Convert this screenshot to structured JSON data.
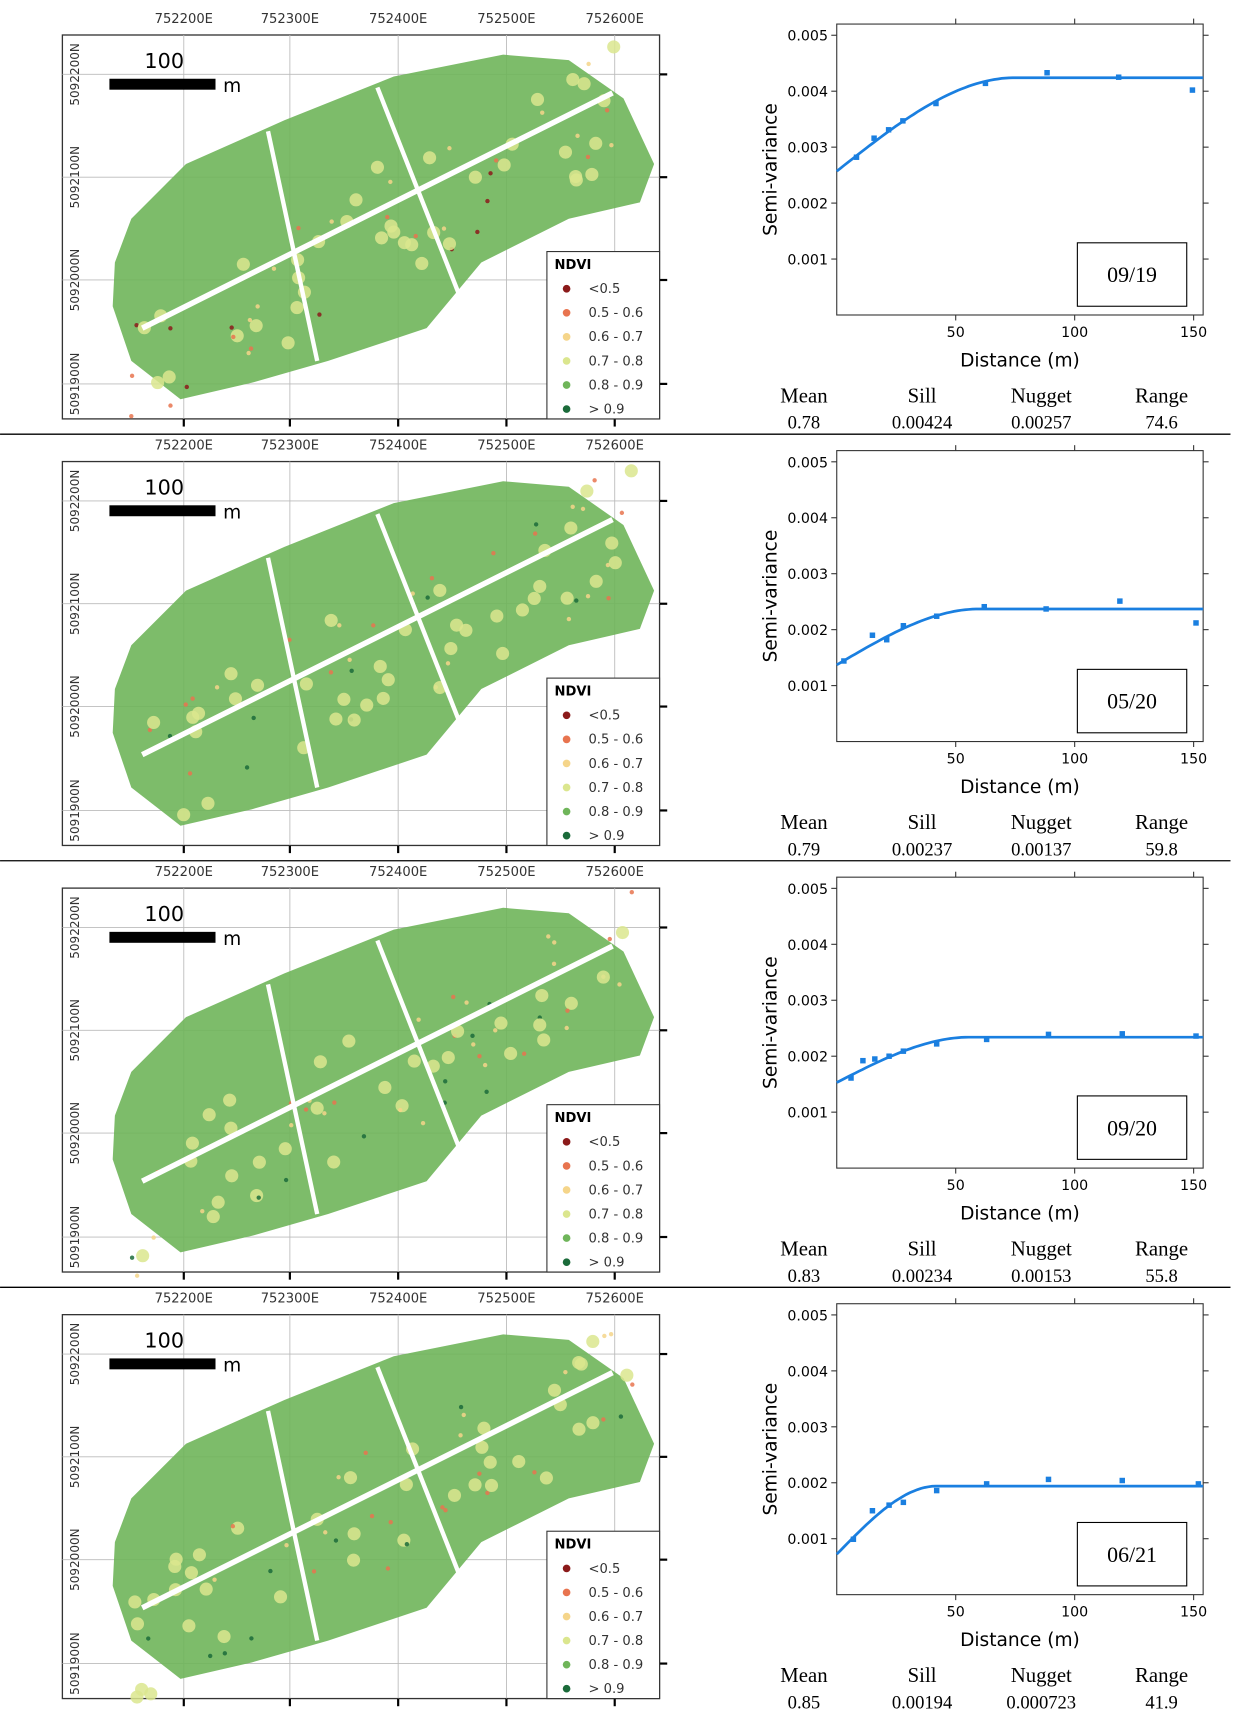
{
  "map": {
    "xticks": [
      "752200E",
      "752300E",
      "752400E",
      "752500E",
      "752600E"
    ],
    "yticks": [
      "5092200N",
      "5092100N",
      "5092000N",
      "5091900N"
    ],
    "scale_label": "100",
    "scale_unit": "m",
    "legend_title": "NDVI",
    "legend": [
      {
        "label": "<0.5",
        "color": "#8b1a1a"
      },
      {
        "label": "0.5 - 0.6",
        "color": "#e8744f"
      },
      {
        "label": "0.6 - 0.7",
        "color": "#f5d58a"
      },
      {
        "label": "0.7 - 0.8",
        "color": "#dbe68e"
      },
      {
        "label": "0.8 - 0.9",
        "color": "#6fb55a"
      },
      {
        "label": "> 0.9",
        "color": "#1b6b3a"
      }
    ]
  },
  "chart_data": [
    {
      "type": "scatter",
      "title": "09/19",
      "x_label": "Distance (m)",
      "y_label": "Semi-variance",
      "color": "#1a7fe0",
      "xlim": [
        0,
        154
      ],
      "ylim": [
        0,
        0.0052
      ],
      "xticks": [
        50,
        100,
        150
      ],
      "yticks": [
        0.001,
        0.002,
        0.003,
        0.004,
        0.005
      ],
      "x": [
        8.3,
        15.7,
        21.8,
        27.8,
        41.7,
        62.5,
        88.4,
        118.5,
        149.5
      ],
      "values": [
        0.00282,
        0.00316,
        0.00331,
        0.00347,
        0.00378,
        0.00414,
        0.00433,
        0.00425,
        0.00402
      ],
      "stats": {
        "labels": [
          "Mean",
          "Sill",
          "Nugget",
          "Range"
        ],
        "values": [
          0.78,
          0.00424,
          0.00257,
          74.6
        ]
      }
    },
    {
      "type": "scatter",
      "title": "05/20",
      "x_label": "Distance (m)",
      "y_label": "Semi-variance",
      "color": "#1a7fe0",
      "xlim": [
        0,
        154
      ],
      "ylim": [
        0,
        0.0052
      ],
      "xticks": [
        50,
        100,
        150
      ],
      "yticks": [
        0.001,
        0.002,
        0.003,
        0.004,
        0.005
      ],
      "x": [
        3,
        15,
        21,
        28,
        42,
        62,
        88,
        119,
        151
      ],
      "values": [
        0.00144,
        0.0019,
        0.00182,
        0.00207,
        0.00224,
        0.00241,
        0.00237,
        0.00251,
        0.00212
      ],
      "stats": {
        "labels": [
          "Mean",
          "Sill",
          "Nugget",
          "Range"
        ],
        "values": [
          0.79,
          0.00237,
          0.00137,
          59.8
        ]
      }
    },
    {
      "type": "scatter",
      "title": "09/20",
      "x_label": "Distance (m)",
      "y_label": "Semi-variance",
      "color": "#1a7fe0",
      "xlim": [
        0,
        154
      ],
      "ylim": [
        0,
        0.0052
      ],
      "xticks": [
        50,
        100,
        150
      ],
      "yticks": [
        0.001,
        0.002,
        0.003,
        0.004,
        0.005
      ],
      "x": [
        6,
        11,
        16,
        22,
        28,
        42,
        63,
        89,
        120,
        151
      ],
      "values": [
        0.00161,
        0.00192,
        0.00195,
        0.002,
        0.00209,
        0.00222,
        0.0023,
        0.00239,
        0.0024,
        0.00236
      ],
      "stats": {
        "labels": [
          "Mean",
          "Sill",
          "Nugget",
          "Range"
        ],
        "values": [
          0.83,
          0.00234,
          0.00153,
          55.8
        ]
      }
    },
    {
      "type": "scatter",
      "title": "06/21",
      "x_label": "Distance (m)",
      "y_label": "Semi-variance",
      "color": "#1a7fe0",
      "xlim": [
        0,
        154
      ],
      "ylim": [
        0,
        0.0052
      ],
      "xticks": [
        50,
        100,
        150
      ],
      "yticks": [
        0.001,
        0.002,
        0.003,
        0.004,
        0.005
      ],
      "x": [
        7,
        15,
        22,
        28,
        42,
        63,
        89,
        120,
        152
      ],
      "values": [
        0.00099,
        0.0015,
        0.0016,
        0.00165,
        0.00186,
        0.00198,
        0.00206,
        0.00204,
        0.00198
      ],
      "stats": {
        "labels": [
          "Mean",
          "Sill",
          "Nugget",
          "Range"
        ],
        "values": [
          0.85,
          0.00194,
          0.000723,
          41.9
        ]
      }
    }
  ]
}
